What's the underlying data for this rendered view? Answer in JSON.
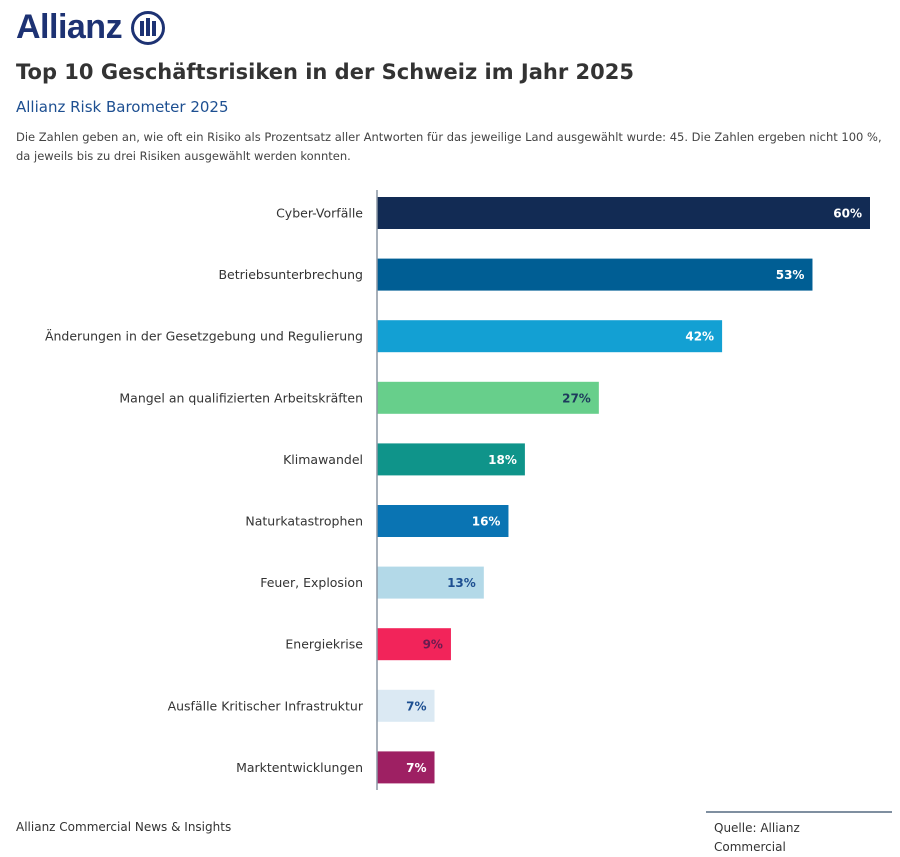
{
  "logo": {
    "text": "Allianz",
    "icon": "allianz-eagle-icon",
    "color": "#1d3273"
  },
  "title": "Top 10 Geschäftsrisiken in der Schweiz im Jahr 2025",
  "subtitle": "Allianz Risk Barometer 2025",
  "note": "Die Zahlen geben an, wie oft ein Risiko als Prozentsatz aller Antworten für das jeweilige Land ausgewählt wurde: 45. Die Zahlen ergeben nicht 100 %, da jeweils bis zu drei Risiken ausgewählt werden konnten.",
  "footer": {
    "left": "Allianz Commercial News & Insights",
    "source": "Quelle: Allianz Commercial"
  },
  "chart_data": {
    "type": "bar",
    "orientation": "horizontal",
    "categories": [
      "Cyber-Vorfälle",
      "Betriebsunterbrechung",
      "Änderungen in der Gesetzgebung und Regulierung",
      "Mangel an qualifizierten Arbeitskräften",
      "Klimawandel",
      "Naturkatastrophen",
      "Feuer, Explosion",
      "Energiekrise",
      "Ausfälle Kritischer Infrastruktur",
      "Marktentwicklungen"
    ],
    "values": [
      60,
      53,
      42,
      27,
      18,
      16,
      13,
      9,
      7,
      7
    ],
    "labels": [
      "60%",
      "53%",
      "42%",
      "27%",
      "18%",
      "16%",
      "13%",
      "9%",
      "7%",
      "7%"
    ],
    "colors": [
      "#122b54",
      "#005e94",
      "#13a0d3",
      "#67cf8b",
      "#0f948a",
      "#0a74b3",
      "#b3d9e8",
      "#f2245a",
      "#dbe9f3",
      "#9e2063"
    ],
    "label_colors": [
      "#ffffff",
      "#ffffff",
      "#ffffff",
      "#1d3a5c",
      "#ffffff",
      "#ffffff",
      "#1d4f91",
      "#6b1b4f",
      "#1d4f91",
      "#ffffff"
    ],
    "xlim": [
      0,
      60
    ],
    "grid": false
  }
}
